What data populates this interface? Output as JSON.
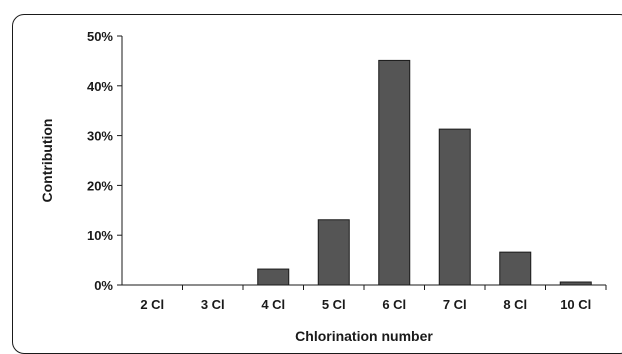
{
  "chart_data": {
    "type": "bar",
    "xlabel": "Chlorination number",
    "ylabel": "Contribution",
    "categories": [
      "2 Cl",
      "3 Cl",
      "4 Cl",
      "5 Cl",
      "6 Cl",
      "7 Cl",
      "8 Cl",
      "10 Cl"
    ],
    "values": [
      0,
      0,
      3.2,
      13.1,
      45.1,
      31.3,
      6.6,
      0.6
    ],
    "ylim": [
      0,
      50
    ],
    "yticks": [
      0,
      10,
      20,
      30,
      40,
      50
    ],
    "ytick_labels": [
      "0%",
      "10%",
      "20%",
      "30%",
      "40%",
      "50%"
    ],
    "grid": false,
    "bar_color": "#555555",
    "bar_edge_color": "#1a1a1a"
  }
}
